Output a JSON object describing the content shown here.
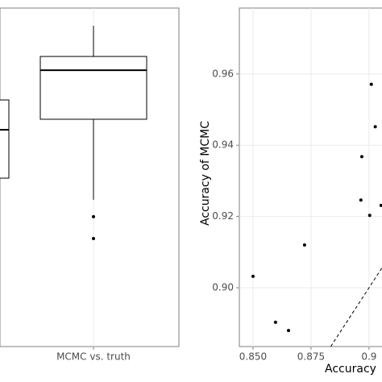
{
  "chart_data": [
    {
      "type": "box",
      "categories": [
        null,
        "MCMC vs. truth"
      ],
      "ylim": [
        0.8,
        1.0
      ],
      "color": "#000000",
      "boxes": [
        {
          "low": null,
          "q1": 0.8995,
          "median": 0.9281,
          "q3": 0.9457,
          "high": null,
          "outliers": []
        },
        {
          "low": 0.8867,
          "q1": 0.9343,
          "median": 0.9633,
          "q3": 0.9714,
          "high": 0.9895,
          "outliers": [
            0.8767,
            0.8638
          ]
        }
      ]
    },
    {
      "type": "scatter",
      "y_label": "Accuracy of MCMC",
      "x_label": "Accuracy",
      "xlim": [
        0.8441,
        0.9056
      ],
      "ylim": [
        0.8835,
        0.9785
      ],
      "xticks": [
        {
          "value": 0.85,
          "label": "0.850"
        },
        {
          "value": 0.875,
          "label": "0.875"
        },
        0.9
      ],
      "yticks": [
        {
          "value": 0.9,
          "label": "0.90"
        },
        {
          "value": 0.92,
          "label": "0.92"
        },
        {
          "value": 0.94,
          "label": "0.94"
        },
        {
          "value": 0.96,
          "label": "0.96"
        }
      ],
      "color": "#000000",
      "x": [
        0.85,
        0.8597,
        0.8653,
        0.8722,
        0.8969,
        0.8965,
        0.9003,
        0.901,
        0.9027,
        0.9052
      ],
      "values": [
        0.9032,
        0.8903,
        0.888,
        0.912,
        0.9368,
        0.9246,
        0.9203,
        0.9571,
        0.9452,
        0.9231
      ]
    }
  ]
}
